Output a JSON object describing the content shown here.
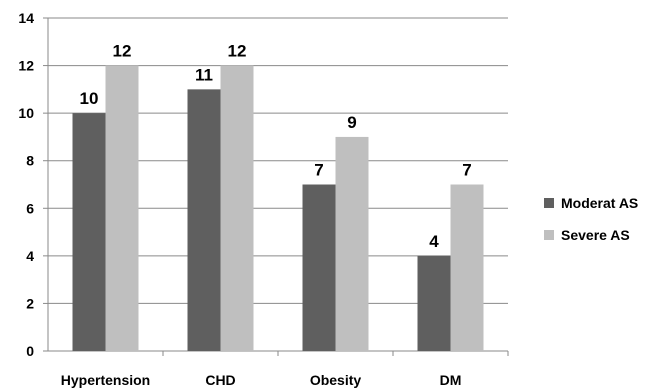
{
  "chart_data": {
    "type": "bar",
    "categories": [
      "Hypertension",
      "CHD",
      "Obesity",
      "DM"
    ],
    "series": [
      {
        "name": "Moderat AS",
        "values": [
          10,
          11,
          7,
          4
        ],
        "color": "#5f5f5f"
      },
      {
        "name": "Severe AS",
        "values": [
          12,
          12,
          9,
          7
        ],
        "color": "#bfbfbf"
      }
    ],
    "ylim": [
      0,
      14
    ],
    "yticks": [
      0,
      2,
      4,
      6,
      8,
      10,
      12,
      14
    ],
    "grid": true,
    "legend_position": "right",
    "data_labels": true
  }
}
